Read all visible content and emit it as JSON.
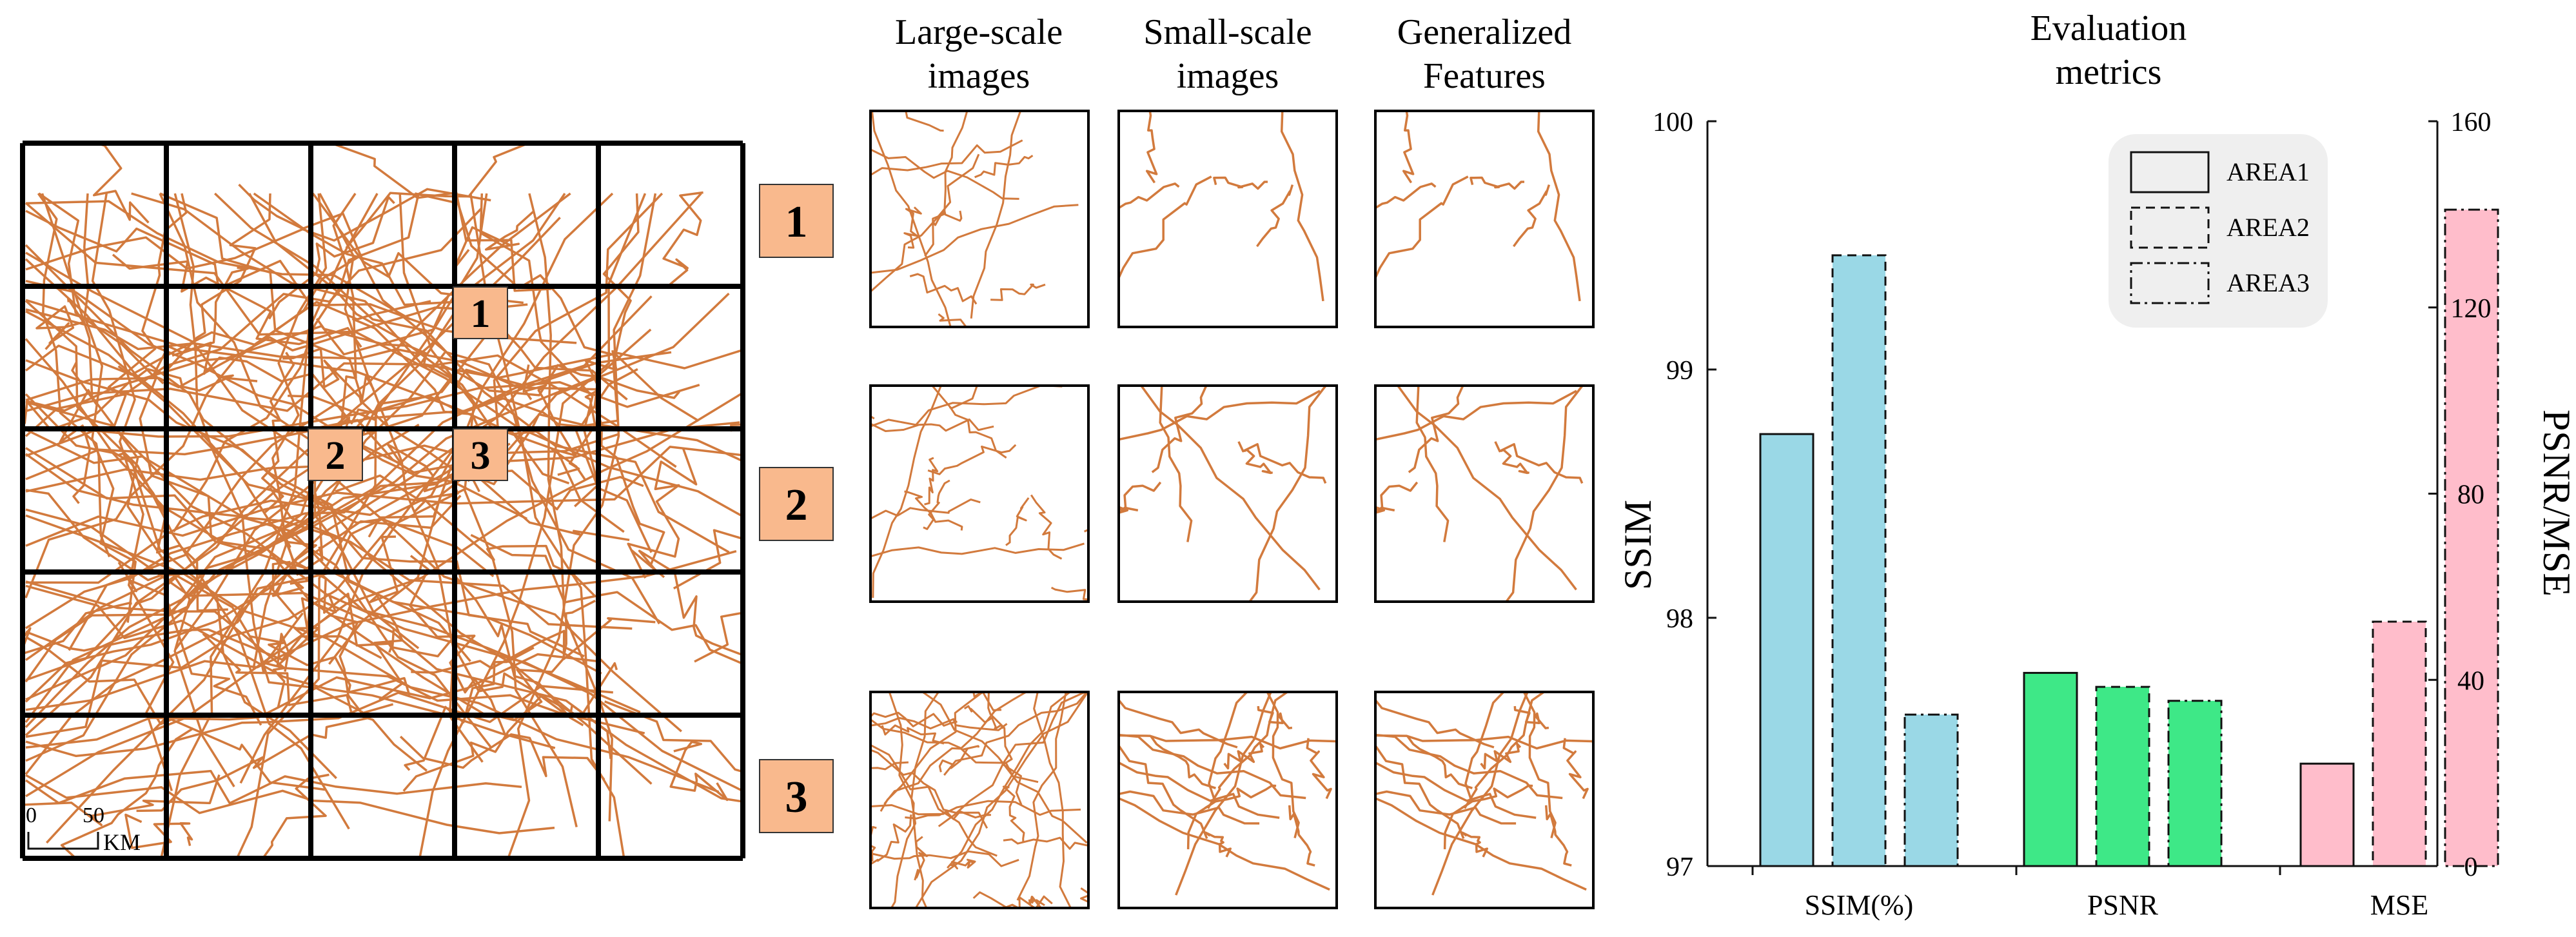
{
  "map": {
    "region_labels": [
      "1",
      "2",
      "3"
    ],
    "scale": {
      "start": "0",
      "end": "50",
      "unit": "KM"
    },
    "road_color": "#d27a3d",
    "label_fill": "#f9b98d"
  },
  "thumbnails": {
    "column_headers": [
      {
        "line1": "Large-scale",
        "line2": "images"
      },
      {
        "line1": "Small-scale",
        "line2": "images"
      },
      {
        "line1": "Generalized",
        "line2": "Features"
      }
    ],
    "row_labels": [
      "1",
      "2",
      "3"
    ]
  },
  "chart_data": {
    "type": "bar",
    "title_lines": [
      "Evaluation",
      "metrics"
    ],
    "categories": [
      "SSIM(%)",
      "PSNR",
      "MSE"
    ],
    "ylabel_left": "SSIM",
    "ylabel_right": "PSNR/MSE",
    "ylim_left": [
      97,
      100
    ],
    "ylim_right": [
      0,
      160
    ],
    "yticks_left": [
      97,
      98,
      99,
      100
    ],
    "yticks_right": [
      0,
      40,
      80,
      120,
      160
    ],
    "legend": [
      {
        "name": "AREA1",
        "dash": "solid"
      },
      {
        "name": "AREA2",
        "dash": "dashed"
      },
      {
        "name": "AREA3",
        "dash": "dashdot"
      }
    ],
    "category_colors": [
      "#9ad8e6",
      "#3ee887",
      "#ffbdcb"
    ],
    "series": [
      {
        "name": "AREA1",
        "axis": [
          "left",
          "right",
          "right"
        ],
        "values": [
          98.74,
          41.5,
          22.0
        ]
      },
      {
        "name": "AREA2",
        "axis": [
          "left",
          "right",
          "right"
        ],
        "values": [
          99.46,
          38.5,
          52.5
        ]
      },
      {
        "name": "AREA3",
        "axis": [
          "left",
          "right",
          "right"
        ],
        "values": [
          97.61,
          35.5,
          141.0
        ]
      }
    ]
  }
}
